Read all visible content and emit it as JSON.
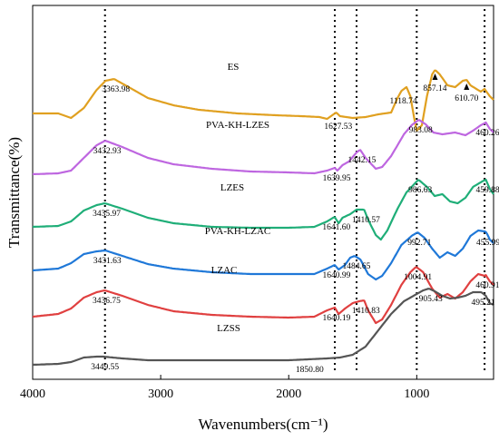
{
  "chart_data": {
    "type": "line",
    "xlabel": "Wavenumbers(cm⁻¹)",
    "ylabel": "Transmittance(%)",
    "xlim": [
      4000,
      400
    ],
    "x_reversed": true,
    "x_ticks": [
      "4000",
      "3000",
      "2000",
      "1000"
    ],
    "x_tick_values": [
      4000,
      3000,
      2000,
      1000
    ],
    "y_ticks_shown": false,
    "grid": false,
    "legend": "none",
    "reference_lines_x": [
      3435,
      1640,
      1470,
      1000,
      470
    ],
    "series": [
      {
        "name": "ES",
        "color": "#E0A020",
        "labels": [
          {
            "text": "3363.98",
            "x": 3363.98
          },
          {
            "text": "1627.53",
            "x": 1627.53
          },
          {
            "text": "1118.74",
            "x": 1118.74
          },
          {
            "text": "857.14",
            "x": 857.14,
            "marker": true
          },
          {
            "text": "610.70",
            "x": 610.7,
            "marker": true
          }
        ],
        "points": [
          [
            4000,
            -61
          ],
          [
            3800,
            -61
          ],
          [
            3700,
            -66
          ],
          [
            3600,
            -55
          ],
          [
            3500,
            -35
          ],
          [
            3430,
            -25
          ],
          [
            3364,
            -23
          ],
          [
            3250,
            -32
          ],
          [
            3100,
            -44
          ],
          [
            2900,
            -52
          ],
          [
            2700,
            -57
          ],
          [
            2400,
            -61
          ],
          [
            2100,
            -63
          ],
          [
            1900,
            -64
          ],
          [
            1760,
            -65
          ],
          [
            1700,
            -67
          ],
          [
            1650,
            -62
          ],
          [
            1628,
            -60
          ],
          [
            1600,
            -64
          ],
          [
            1500,
            -66
          ],
          [
            1400,
            -65
          ],
          [
            1300,
            -62
          ],
          [
            1200,
            -60
          ],
          [
            1150,
            -44
          ],
          [
            1119,
            -36
          ],
          [
            1080,
            -32
          ],
          [
            1050,
            -42
          ],
          [
            1020,
            -66
          ],
          [
            1000,
            -80
          ],
          [
            960,
            -74
          ],
          [
            920,
            -42
          ],
          [
            880,
            -18
          ],
          [
            857,
            -13
          ],
          [
            820,
            -18
          ],
          [
            760,
            -30
          ],
          [
            700,
            -32
          ],
          [
            640,
            -25
          ],
          [
            611,
            -24
          ],
          [
            580,
            -30
          ],
          [
            500,
            -37
          ],
          [
            470,
            -34
          ],
          [
            430,
            -42
          ],
          [
            400,
            -46
          ]
        ]
      },
      {
        "name": "PVA-KH-LZES",
        "color": "#BE66E0",
        "labels": [
          {
            "text": "3432.93",
            "x": 3432.93
          },
          {
            "text": "1639.95",
            "x": 1639.95
          },
          {
            "text": "1442.15",
            "x": 1442.15
          },
          {
            "text": "983.08",
            "x": 983.08
          },
          {
            "text": "460.26",
            "x": 460.26
          }
        ],
        "points": [
          [
            4000,
            -128
          ],
          [
            3800,
            -127
          ],
          [
            3700,
            -124
          ],
          [
            3600,
            -110
          ],
          [
            3500,
            -96
          ],
          [
            3433,
            -91
          ],
          [
            3300,
            -98
          ],
          [
            3100,
            -110
          ],
          [
            2900,
            -117
          ],
          [
            2600,
            -122
          ],
          [
            2300,
            -125
          ],
          [
            2000,
            -126
          ],
          [
            1800,
            -127
          ],
          [
            1700,
            -124
          ],
          [
            1640,
            -121
          ],
          [
            1620,
            -124
          ],
          [
            1580,
            -118
          ],
          [
            1530,
            -114
          ],
          [
            1470,
            -104
          ],
          [
            1442,
            -101
          ],
          [
            1400,
            -110
          ],
          [
            1320,
            -122
          ],
          [
            1270,
            -120
          ],
          [
            1200,
            -108
          ],
          [
            1100,
            -84
          ],
          [
            1040,
            -74
          ],
          [
            983,
            -68
          ],
          [
            930,
            -73
          ],
          [
            870,
            -82
          ],
          [
            800,
            -84
          ],
          [
            700,
            -82
          ],
          [
            620,
            -85
          ],
          [
            560,
            -80
          ],
          [
            500,
            -74
          ],
          [
            460,
            -71
          ],
          [
            430,
            -78
          ],
          [
            400,
            -82
          ]
        ]
      },
      {
        "name": "LZES",
        "color": "#1FAE78",
        "labels": [
          {
            "text": "3435.97",
            "x": 3435.97
          },
          {
            "text": "1641.60",
            "x": 1641.6
          },
          {
            "text": "1410.57",
            "x": 1410.57
          },
          {
            "text": "986.63",
            "x": 986.63
          },
          {
            "text": "459.88",
            "x": 459.88
          }
        ],
        "points": [
          [
            4000,
            -186
          ],
          [
            3800,
            -185
          ],
          [
            3700,
            -180
          ],
          [
            3600,
            -168
          ],
          [
            3500,
            -162
          ],
          [
            3436,
            -160
          ],
          [
            3300,
            -166
          ],
          [
            3100,
            -176
          ],
          [
            2900,
            -182
          ],
          [
            2600,
            -186
          ],
          [
            2300,
            -187
          ],
          [
            2000,
            -187
          ],
          [
            1800,
            -186
          ],
          [
            1700,
            -180
          ],
          [
            1642,
            -175
          ],
          [
            1610,
            -182
          ],
          [
            1580,
            -176
          ],
          [
            1520,
            -172
          ],
          [
            1470,
            -167
          ],
          [
            1411,
            -167
          ],
          [
            1380,
            -178
          ],
          [
            1320,
            -195
          ],
          [
            1280,
            -200
          ],
          [
            1230,
            -190
          ],
          [
            1150,
            -166
          ],
          [
            1080,
            -148
          ],
          [
            987,
            -134
          ],
          [
            920,
            -142
          ],
          [
            860,
            -152
          ],
          [
            800,
            -150
          ],
          [
            740,
            -158
          ],
          [
            680,
            -160
          ],
          [
            620,
            -154
          ],
          [
            560,
            -142
          ],
          [
            490,
            -136
          ],
          [
            460,
            -134
          ],
          [
            430,
            -144
          ],
          [
            400,
            -150
          ]
        ]
      },
      {
        "name": "PVA-KH-LZAC",
        "color": "#1F78D8",
        "labels": [
          {
            "text": "3431.63",
            "x": 3431.63
          },
          {
            "text": "1640.99",
            "x": 1640.99
          },
          {
            "text": "1484.65",
            "x": 1484.65
          },
          {
            "text": "992.71",
            "x": 992.71
          },
          {
            "text": "455.99",
            "x": 455.99
          }
        ],
        "points": [
          [
            4000,
            -234
          ],
          [
            3800,
            -232
          ],
          [
            3700,
            -226
          ],
          [
            3600,
            -216
          ],
          [
            3500,
            -213
          ],
          [
            3432,
            -212
          ],
          [
            3300,
            -218
          ],
          [
            3100,
            -227
          ],
          [
            2900,
            -232
          ],
          [
            2600,
            -236
          ],
          [
            2300,
            -238
          ],
          [
            2000,
            -238
          ],
          [
            1800,
            -238
          ],
          [
            1700,
            -232
          ],
          [
            1641,
            -228
          ],
          [
            1610,
            -233
          ],
          [
            1560,
            -228
          ],
          [
            1520,
            -220
          ],
          [
            1485,
            -218
          ],
          [
            1440,
            -222
          ],
          [
            1380,
            -238
          ],
          [
            1320,
            -244
          ],
          [
            1270,
            -240
          ],
          [
            1200,
            -226
          ],
          [
            1120,
            -206
          ],
          [
            1040,
            -196
          ],
          [
            993,
            -192
          ],
          [
            940,
            -198
          ],
          [
            880,
            -210
          ],
          [
            820,
            -220
          ],
          [
            760,
            -214
          ],
          [
            700,
            -218
          ],
          [
            640,
            -210
          ],
          [
            580,
            -196
          ],
          [
            520,
            -190
          ],
          [
            470,
            -191
          ],
          [
            456,
            -192
          ],
          [
            430,
            -200
          ],
          [
            400,
            -204
          ]
        ]
      },
      {
        "name": "LZAC",
        "color": "#E04040",
        "labels": [
          {
            "text": "3436.75",
            "x": 3436.75
          },
          {
            "text": "1640.19",
            "x": 1640.19
          },
          {
            "text": "1410.83",
            "x": 1410.83
          },
          {
            "text": "1004.91",
            "x": 1004.91
          },
          {
            "text": "460.91",
            "x": 460.91
          }
        ],
        "points": [
          [
            4000,
            -285
          ],
          [
            3800,
            -282
          ],
          [
            3700,
            -276
          ],
          [
            3600,
            -264
          ],
          [
            3500,
            -258
          ],
          [
            3437,
            -256
          ],
          [
            3300,
            -262
          ],
          [
            3100,
            -272
          ],
          [
            2900,
            -279
          ],
          [
            2600,
            -283
          ],
          [
            2300,
            -285
          ],
          [
            2000,
            -286
          ],
          [
            1800,
            -285
          ],
          [
            1700,
            -278
          ],
          [
            1640,
            -275
          ],
          [
            1610,
            -282
          ],
          [
            1560,
            -276
          ],
          [
            1500,
            -270
          ],
          [
            1450,
            -268
          ],
          [
            1411,
            -267
          ],
          [
            1380,
            -278
          ],
          [
            1320,
            -292
          ],
          [
            1270,
            -288
          ],
          [
            1200,
            -272
          ],
          [
            1120,
            -250
          ],
          [
            1050,
            -236
          ],
          [
            1005,
            -230
          ],
          [
            950,
            -236
          ],
          [
            880,
            -254
          ],
          [
            820,
            -264
          ],
          [
            760,
            -260
          ],
          [
            700,
            -265
          ],
          [
            640,
            -258
          ],
          [
            580,
            -246
          ],
          [
            520,
            -238
          ],
          [
            470,
            -240
          ],
          [
            461,
            -239
          ],
          [
            430,
            -246
          ],
          [
            400,
            -250
          ]
        ]
      },
      {
        "name": "LZSS",
        "color": "#555555",
        "labels": [
          {
            "text": "3449.55",
            "x": 3449.55
          },
          {
            "text": "1850.80",
            "x": 1850.8
          },
          {
            "text": "905.43",
            "x": 905.43
          },
          {
            "text": "495.21",
            "x": 495.21
          }
        ],
        "points": [
          [
            4000,
            -338
          ],
          [
            3800,
            -337
          ],
          [
            3700,
            -335
          ],
          [
            3600,
            -330
          ],
          [
            3500,
            -329
          ],
          [
            3450,
            -329
          ],
          [
            3300,
            -331
          ],
          [
            3100,
            -333
          ],
          [
            2900,
            -333
          ],
          [
            2600,
            -333
          ],
          [
            2300,
            -333
          ],
          [
            2000,
            -333
          ],
          [
            1851,
            -332
          ],
          [
            1700,
            -331
          ],
          [
            1600,
            -330
          ],
          [
            1500,
            -327
          ],
          [
            1400,
            -318
          ],
          [
            1300,
            -300
          ],
          [
            1200,
            -282
          ],
          [
            1100,
            -268
          ],
          [
            1000,
            -260
          ],
          [
            950,
            -256
          ],
          [
            905,
            -254
          ],
          [
            860,
            -257
          ],
          [
            800,
            -262
          ],
          [
            740,
            -265
          ],
          [
            680,
            -264
          ],
          [
            620,
            -262
          ],
          [
            560,
            -258
          ],
          [
            495,
            -258
          ],
          [
            460,
            -262
          ],
          [
            430,
            -270
          ],
          [
            400,
            -272
          ]
        ]
      }
    ]
  }
}
